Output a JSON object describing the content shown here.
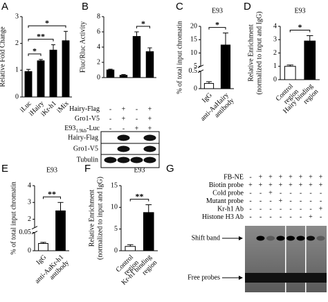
{
  "chart_data": [
    {
      "type": "bar",
      "panel": "A",
      "ylabel": [
        "Relative Fold Change"
      ],
      "categories": [
        [
          "iLuc"
        ],
        [
          "iHairy"
        ],
        [
          "iKr-h1"
        ],
        [
          "iMix"
        ]
      ],
      "values": [
        0.95,
        1.35,
        1.75,
        2.1
      ],
      "errors": [
        0.08,
        0.05,
        0.2,
        0.35
      ],
      "colors": [
        "#000000",
        "#000000",
        "#000000",
        "#000000"
      ],
      "ylim": [
        0,
        3
      ],
      "yticks": [
        0,
        1,
        2,
        3
      ],
      "sig": [
        {
          "pair": [
            0,
            1
          ],
          "label": "*"
        },
        {
          "pair": [
            0,
            2
          ],
          "label": "**"
        },
        {
          "pair": [
            0,
            3
          ],
          "label": "*"
        }
      ]
    },
    {
      "type": "bar",
      "panel": "B",
      "ylabel": [
        "Fluc/Rluc Activity"
      ],
      "values": [
        1.0,
        0.3,
        5.4,
        3.4
      ],
      "errors": [
        0.1,
        0.1,
        0.6,
        0.5
      ],
      "colors": [
        "#000000",
        "#000000",
        "#000000",
        "#000000"
      ],
      "ylim": [
        0,
        8
      ],
      "yticks": [
        0,
        2,
        4,
        6,
        8
      ],
      "sig": [
        {
          "pair": [
            2,
            3
          ],
          "label": "*"
        }
      ]
    },
    {
      "type": "bar",
      "panel": "C",
      "title": "E93",
      "ylabel": [
        "% of total input chromatin"
      ],
      "categories": [
        [
          "IgG"
        ],
        [
          "anti-AaHairy",
          "antibody"
        ]
      ],
      "values": [
        0.15,
        13
      ],
      "errors": [
        0.05,
        4.5
      ],
      "colors": [
        "#ffffff",
        "#000000"
      ],
      "ylim": [
        0,
        20
      ],
      "ybreak": [
        0.5,
        5
      ],
      "yticks": [
        0,
        0.5,
        5,
        10,
        15,
        20
      ],
      "sig": [
        {
          "pair": [
            0,
            1
          ],
          "label": "*"
        }
      ]
    },
    {
      "type": "bar",
      "panel": "D",
      "title": "E93",
      "ylabel": [
        "Relative Enrichment",
        "(normalized to input and IgG)"
      ],
      "categories": [
        [
          "Control",
          "region"
        ],
        [
          "Hairy binding",
          "region"
        ]
      ],
      "values": [
        1.0,
        2.9
      ],
      "errors": [
        0.1,
        0.4
      ],
      "colors": [
        "#ffffff",
        "#000000"
      ],
      "ylim": [
        0,
        4
      ],
      "yticks": [
        0,
        1,
        2,
        3,
        4
      ],
      "sig": [
        {
          "pair": [
            0,
            1
          ],
          "label": "*"
        }
      ]
    },
    {
      "type": "bar",
      "panel": "E",
      "title": "E93",
      "ylabel": [
        "% of total input chromatin"
      ],
      "categories": [
        [
          "IgG"
        ],
        [
          "anti-AaKr-h1",
          "antibody"
        ]
      ],
      "values": [
        0.02,
        2.5
      ],
      "errors": [
        0.003,
        0.5
      ],
      "colors": [
        "#ffffff",
        "#000000"
      ],
      "ylim": [
        0,
        4
      ],
      "ybreak": [
        0.05,
        1.5
      ],
      "yticks": [
        0,
        0.05,
        2,
        3,
        4
      ],
      "sig": [
        {
          "pair": [
            0,
            1
          ],
          "label": "**"
        }
      ]
    },
    {
      "type": "bar",
      "panel": "F",
      "title": "E93",
      "ylabel": [
        "Relative Enrichment",
        "(normalized to input and IgG)"
      ],
      "categories": [
        [
          "Control",
          "region"
        ],
        [
          "Kr-h1 binding",
          "region"
        ]
      ],
      "values": [
        1.0,
        8.8
      ],
      "errors": [
        0.4,
        1.8
      ],
      "colors": [
        "#ffffff",
        "#000000"
      ],
      "ylim": [
        0,
        15
      ],
      "yticks": [
        0,
        5,
        10,
        15
      ],
      "sig": [
        {
          "pair": [
            0,
            1
          ],
          "label": "**"
        }
      ]
    }
  ],
  "condition_table_b": {
    "rows": [
      {
        "label": "Hairy-Flag",
        "signs": [
          "-",
          "+",
          "-",
          "+"
        ]
      },
      {
        "label": "Gro1-V5",
        "signs": [
          "-",
          "+",
          "-",
          "+"
        ]
      },
      {
        "label": "E93",
        "sub": "1.9kb",
        "suffix": "-Luc",
        "signs": [
          "-",
          "-",
          "+",
          "+"
        ]
      }
    ]
  },
  "blot_b": {
    "rows": [
      "Hairy-Flag",
      "Gro1-V5",
      "Tubulin"
    ]
  },
  "gel": {
    "panel": "G",
    "rows": [
      {
        "label": "FB-NE",
        "signs": [
          "-",
          "+",
          "+",
          "+",
          "+",
          "+",
          "+",
          "+"
        ]
      },
      {
        "label": "Biotin probe",
        "signs": [
          "+",
          "+",
          "+",
          "+",
          "+",
          "+",
          "+",
          "+"
        ]
      },
      {
        "label": "Cold probe",
        "signs": [
          "-",
          "-",
          "+",
          "-",
          "-",
          "-",
          "-",
          "-"
        ]
      },
      {
        "label": "Mutant probe",
        "signs": [
          "-",
          "-",
          "-",
          "+",
          "-",
          "-",
          "-",
          "-"
        ]
      },
      {
        "label": "Kr-h1 Ab",
        "signs": [
          "-",
          "-",
          "-",
          "-",
          "-",
          "-",
          "-",
          "+"
        ]
      },
      {
        "label": "Histone H3 Ab",
        "signs": [
          "-",
          "-",
          "-",
          "-",
          "-",
          "-",
          "+",
          "-"
        ]
      }
    ],
    "shift_label": "Shift band",
    "free_label": "Free probes"
  }
}
